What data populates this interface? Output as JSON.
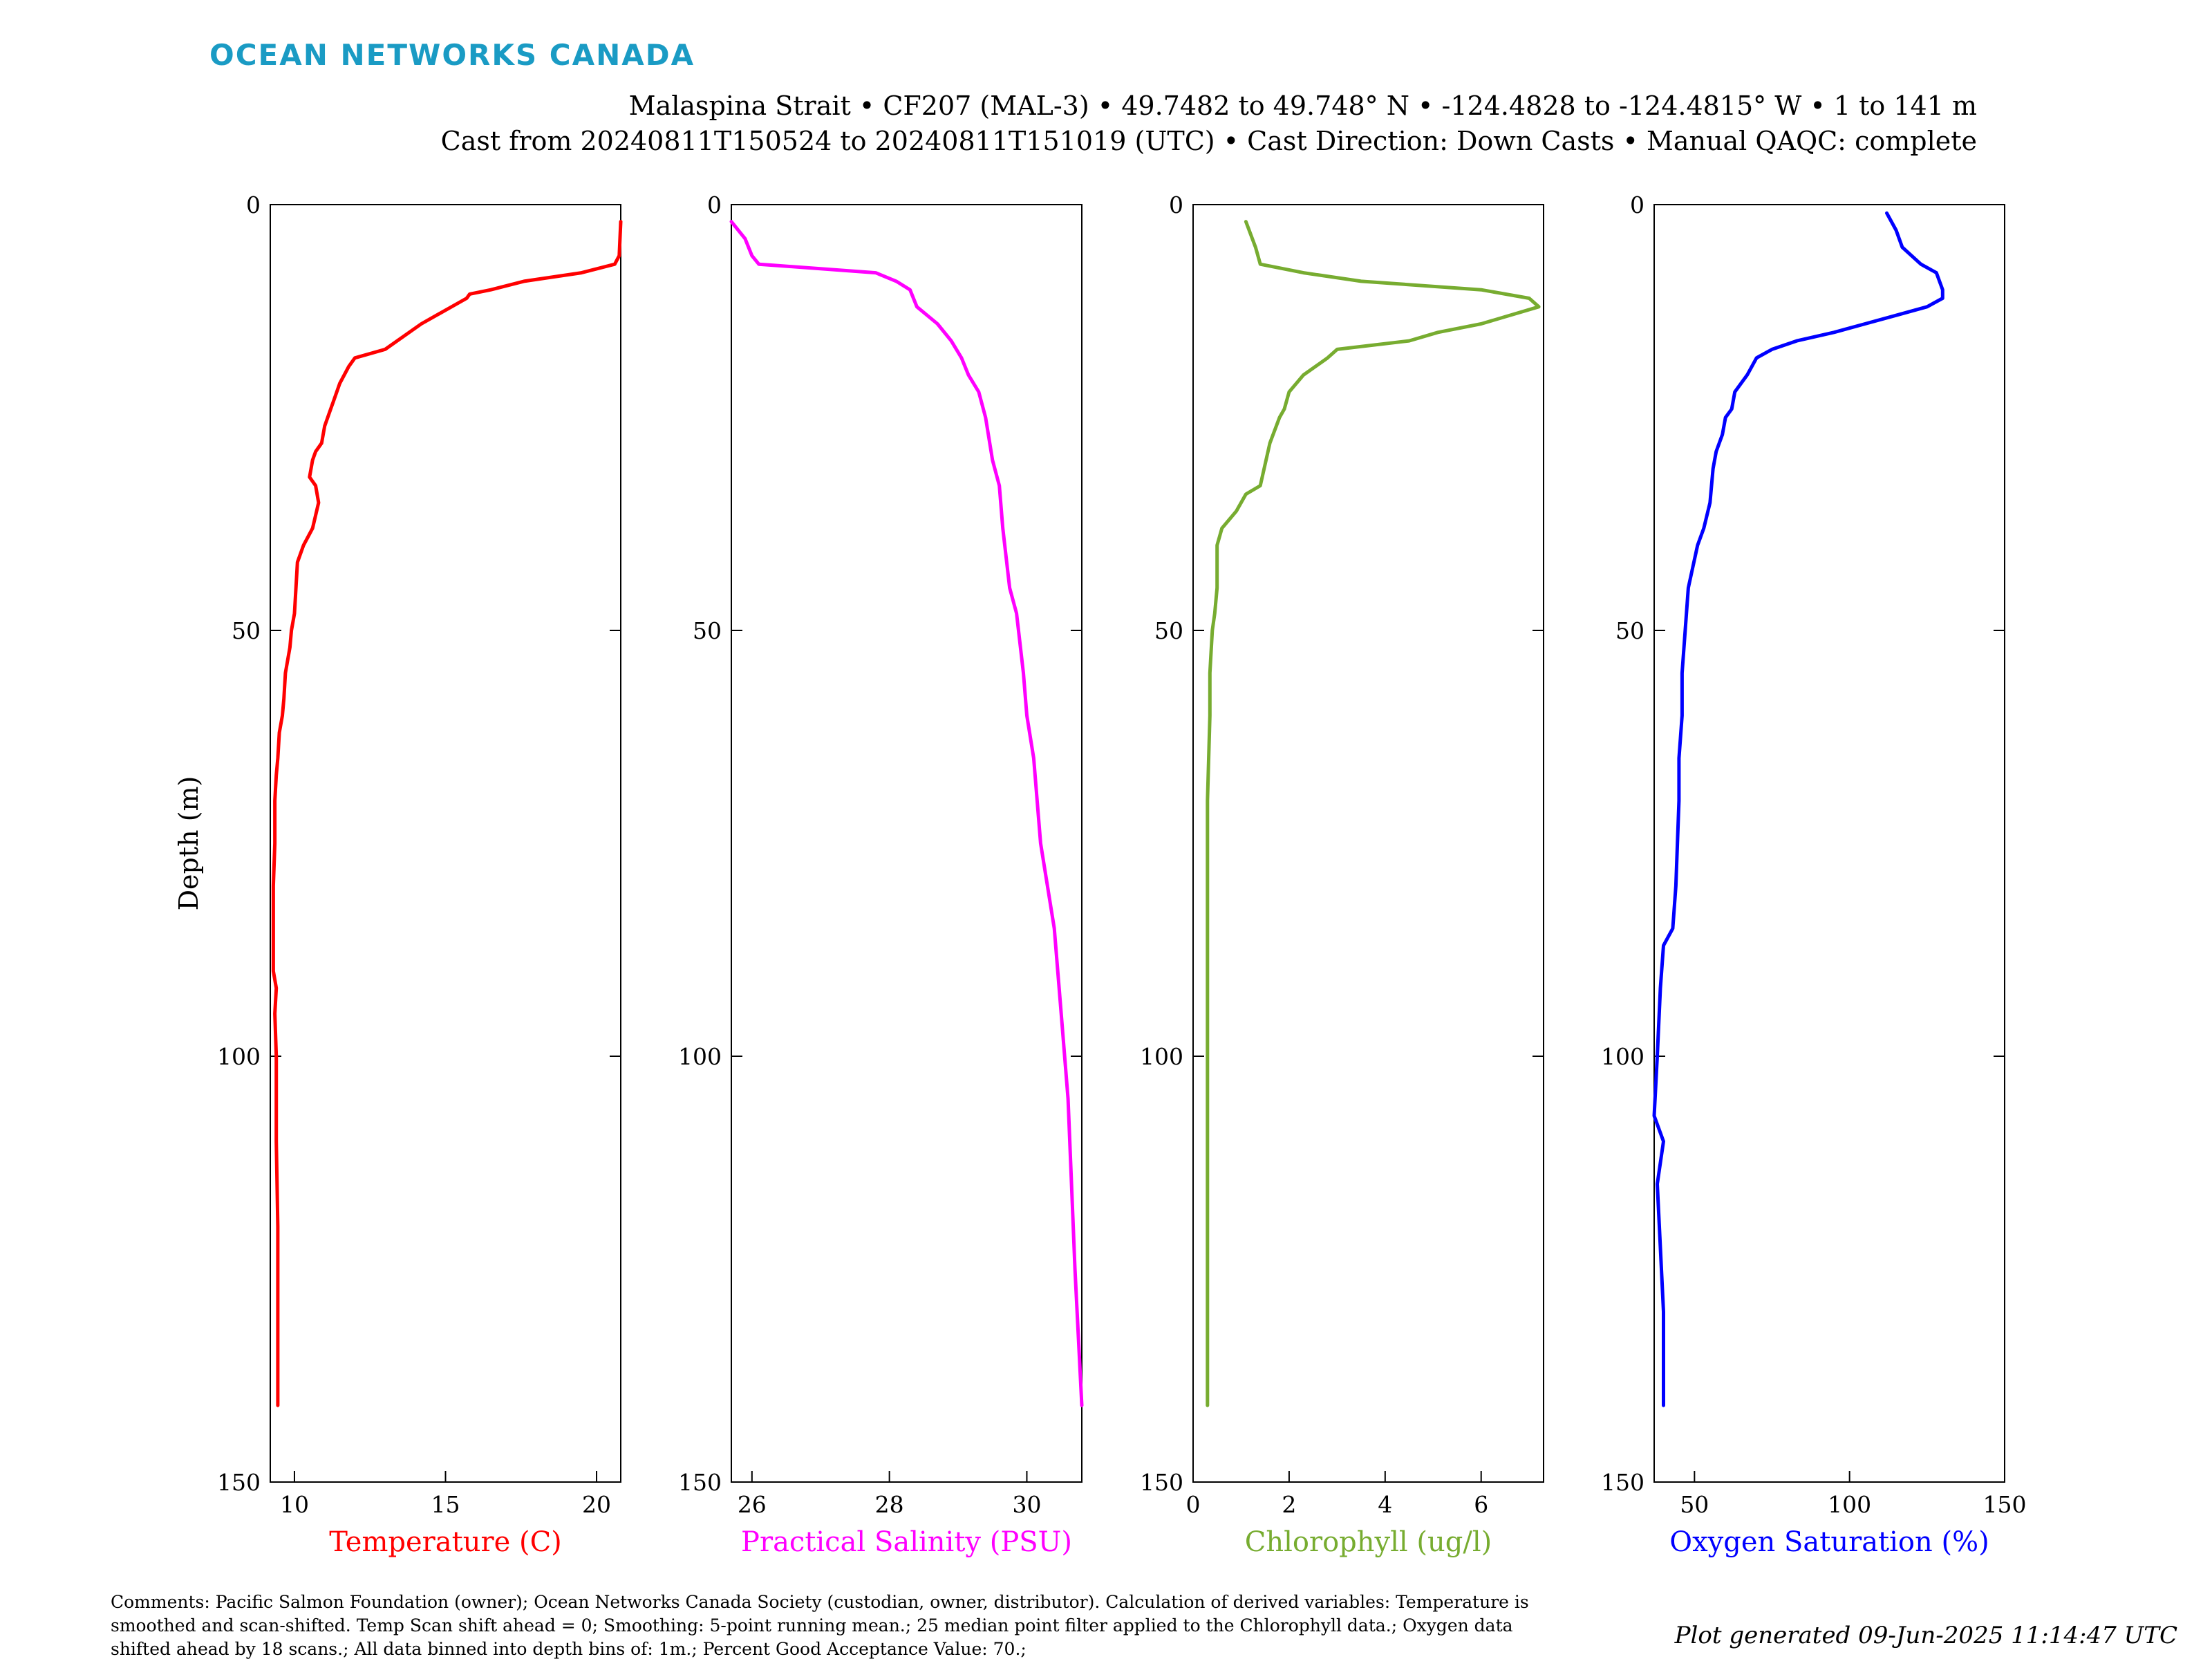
{
  "brand": {
    "logo_text": "OCEAN NETWORKS CANADA",
    "color": "#1a9bc4"
  },
  "header": {
    "line1": "Malaspina Strait • CF207 (MAL-3) • 49.7482 to 49.748° N • -124.4828 to -124.4815° W • 1 to 141 m",
    "line2": "Cast from 20240811T150524 to 20240811T151019 (UTC) • Cast Direction: Down Casts • Manual QAQC: complete"
  },
  "footer": {
    "comments_lines": [
      "Comments: Pacific Salmon Foundation (owner); Ocean Networks Canada Society (custodian, owner, distributor). Calculation of derived variables: Temperature is",
      "smoothed and scan-shifted. Temp Scan shift ahead = 0; Smoothing: 5-point running mean.; 25 median point filter applied to the Chlorophyll data.; Oxygen data",
      "shifted ahead by 18 scans.; All data binned into depth bins of: 1m.; Percent Good Acceptance Value: 70.;"
    ],
    "generated": "Plot generated 09-Jun-2025 11:14:47 UTC"
  },
  "chart_data": [
    {
      "type": "line",
      "xlabel": "Temperature (C)",
      "ylabel": "Depth (m)",
      "color": "#ff0000",
      "xlim": [
        9.2,
        20.8
      ],
      "ylim": [
        150,
        0
      ],
      "xticks": [
        10,
        15,
        20
      ],
      "yticks": [
        0,
        50,
        100,
        150
      ],
      "grid": false,
      "series": [
        {
          "x": [
            20.8,
            20.75,
            20.6,
            19.5,
            17.6,
            16.5,
            15.8,
            15.7,
            14.2,
            13.0,
            12.0,
            11.8,
            11.5,
            11.3,
            11.2,
            11.0,
            10.9,
            10.7,
            10.6,
            10.5,
            10.7,
            10.8,
            10.6,
            10.3,
            10.1,
            10.0,
            9.9,
            9.85,
            9.7,
            9.65,
            9.6,
            9.5,
            9.45,
            9.4,
            9.35,
            9.35,
            9.3,
            9.3,
            9.3,
            9.4,
            9.35,
            9.4,
            9.4,
            9.45,
            9.45,
            9.45
          ],
          "y": [
            2,
            6,
            7,
            8,
            9,
            10,
            10.5,
            11,
            14,
            17,
            18,
            19,
            21,
            23,
            24,
            26,
            28,
            29,
            30,
            32,
            33,
            35,
            38,
            40,
            42,
            48,
            50,
            52,
            55,
            58,
            60,
            62,
            65,
            67,
            70,
            75,
            80,
            85,
            90,
            92,
            95,
            100,
            110,
            120,
            130,
            141
          ]
        }
      ]
    },
    {
      "type": "line",
      "xlabel": "Practical Salinity (PSU)",
      "ylabel": "",
      "color": "#ff00ff",
      "xlim": [
        25.7,
        30.8
      ],
      "ylim": [
        150,
        0
      ],
      "xticks": [
        26,
        28,
        30
      ],
      "yticks": [
        0,
        50,
        100,
        150
      ],
      "grid": false,
      "series": [
        {
          "x": [
            25.7,
            25.9,
            26.0,
            26.1,
            27.8,
            28.1,
            28.3,
            28.4,
            28.7,
            28.9,
            29.05,
            29.15,
            29.3,
            29.4,
            29.5,
            29.6,
            29.65,
            29.75,
            29.85,
            29.95,
            30.0,
            30.1,
            30.15,
            30.2,
            30.3,
            30.4,
            30.5,
            30.6,
            30.7,
            30.8
          ],
          "y": [
            2,
            4,
            6,
            7,
            8,
            9,
            10,
            12,
            14,
            16,
            18,
            20,
            22,
            25,
            30,
            33,
            38,
            45,
            48,
            55,
            60,
            65,
            70,
            75,
            80,
            85,
            95,
            105,
            125,
            141
          ]
        }
      ]
    },
    {
      "type": "line",
      "xlabel": "Chlorophyll (ug/l)",
      "ylabel": "",
      "color": "#77ac30",
      "xlim": [
        0,
        7.3
      ],
      "ylim": [
        150,
        0
      ],
      "xticks": [
        0,
        2,
        4,
        6
      ],
      "yticks": [
        0,
        50,
        100,
        150
      ],
      "grid": false,
      "series": [
        {
          "x": [
            1.1,
            1.3,
            1.35,
            1.4,
            2.3,
            3.5,
            6.0,
            7.0,
            7.2,
            6.0,
            5.1,
            4.5,
            3.0,
            2.8,
            2.3,
            2.0,
            1.9,
            1.8,
            1.6,
            1.4,
            1.1,
            0.9,
            0.6,
            0.5,
            0.5,
            0.45,
            0.4,
            0.35,
            0.35,
            0.3,
            0.3,
            0.3,
            0.3,
            0.3
          ],
          "y": [
            2,
            5,
            6,
            7,
            8,
            9,
            10,
            11,
            12,
            14,
            15,
            16,
            17,
            18,
            20,
            22,
            24,
            25,
            28,
            33,
            34,
            36,
            38,
            40,
            45,
            48,
            50,
            55,
            60,
            70,
            80,
            100,
            120,
            141
          ]
        }
      ]
    },
    {
      "type": "line",
      "xlabel": "Oxygen Saturation (%)",
      "ylabel": "",
      "color": "#0000ff",
      "xlim": [
        37,
        150
      ],
      "ylim": [
        150,
        0
      ],
      "xticks": [
        50,
        100,
        150
      ],
      "yticks": [
        0,
        50,
        100,
        150
      ],
      "grid": false,
      "series": [
        {
          "x": [
            112,
            115,
            117,
            123,
            128,
            130,
            130,
            125,
            115,
            105,
            95,
            83,
            75,
            70,
            67,
            63,
            62,
            60,
            59,
            57,
            56,
            55,
            53,
            51,
            48,
            47,
            46,
            46,
            45,
            45,
            44,
            43,
            40,
            39,
            38,
            37,
            40,
            38,
            40,
            40
          ],
          "y": [
            1,
            3,
            5,
            7,
            8,
            10,
            11,
            12,
            13,
            14,
            15,
            16,
            17,
            18,
            20,
            22,
            24,
            25,
            27,
            29,
            31,
            35,
            38,
            40,
            45,
            50,
            55,
            60,
            65,
            70,
            80,
            85,
            87,
            92,
            100,
            107,
            110,
            115,
            130,
            141
          ]
        }
      ]
    }
  ]
}
